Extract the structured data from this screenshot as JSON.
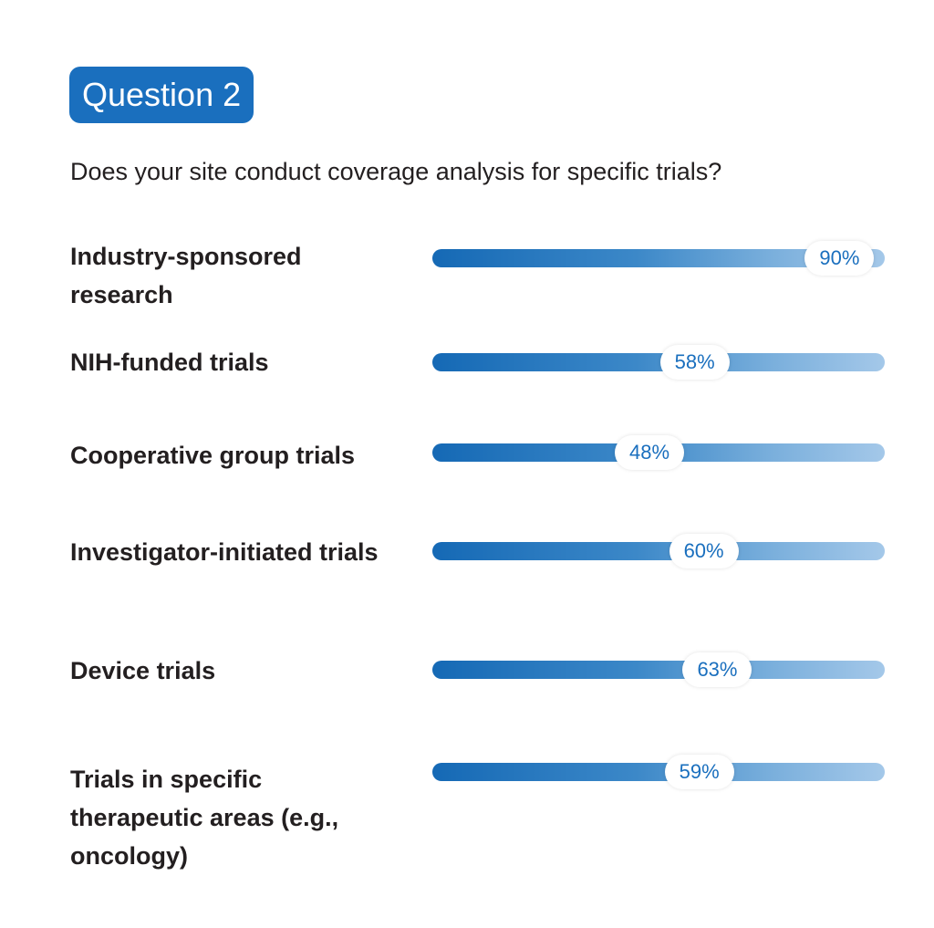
{
  "badge": "Question 2",
  "question": "Does your site conduct coverage analysis for specific trials?",
  "colors": {
    "accent": "#1a6fbe",
    "bar_start": "#1569b5",
    "bar_end": "#a4c8e9",
    "text": "#231f20"
  },
  "chart_data": {
    "type": "bar",
    "orientation": "horizontal",
    "title": "",
    "categories": [
      "Industry-sponsored research",
      "NIH-funded trials",
      "Cooperative group trials",
      "Investigator-initiated trials",
      "Device trials",
      "Trials in specific therapeutic areas (e.g., oncology)"
    ],
    "values": [
      90,
      58,
      48,
      60,
      63,
      59
    ],
    "value_labels": [
      "90%",
      "58%",
      "48%",
      "60%",
      "63%",
      "59%"
    ],
    "xlim": [
      0,
      100
    ],
    "grid": false,
    "legend": "none"
  }
}
